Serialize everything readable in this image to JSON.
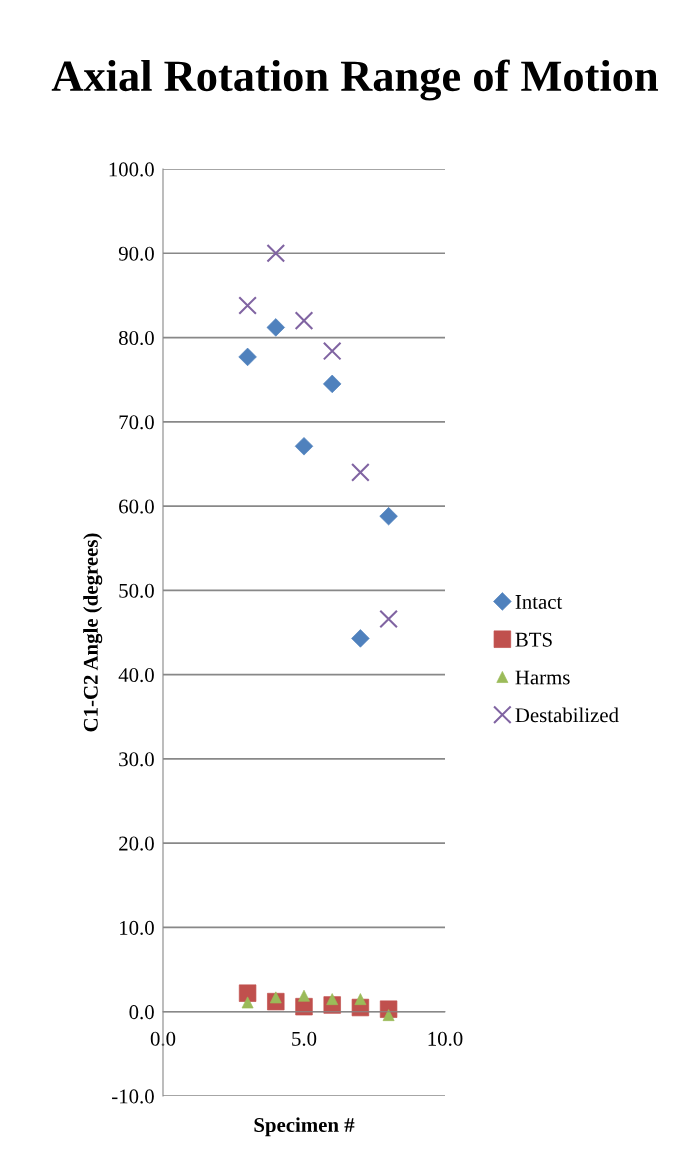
{
  "chart_data": {
    "type": "scatter",
    "title": "Axial Rotation Range of Motion",
    "xlabel": "Specimen #",
    "ylabel": "C1-C2 Angle (degrees)",
    "x": [
      3,
      4,
      5,
      6,
      7,
      8
    ],
    "series": [
      {
        "name": "Intact",
        "color": "#4f81bd",
        "marker": "diamond",
        "values": [
          77.7,
          81.2,
          67.1,
          74.5,
          44.3,
          58.8
        ]
      },
      {
        "name": "BTS",
        "color": "#c0504d",
        "marker": "square",
        "values": [
          2.2,
          1.2,
          0.6,
          0.8,
          0.5,
          0.3
        ]
      },
      {
        "name": "Harms",
        "color": "#9bbb59",
        "marker": "triangle",
        "values": [
          1.1,
          1.7,
          1.9,
          1.5,
          1.5,
          -0.4
        ]
      },
      {
        "name": "Destabilized",
        "color": "#8064a2",
        "marker": "cross",
        "values": [
          83.8,
          90.0,
          82.0,
          78.4,
          64.0,
          46.6
        ]
      }
    ],
    "xlim": [
      0,
      10
    ],
    "xticks": [
      {
        "value": 0,
        "label": "0.0"
      },
      {
        "value": 5,
        "label": "5.0"
      },
      {
        "value": 10,
        "label": "10.0"
      }
    ],
    "ylim": [
      -10,
      100
    ],
    "yticks": [
      {
        "value": -10,
        "label": "-10.0"
      },
      {
        "value": 0,
        "label": "0.0"
      },
      {
        "value": 10,
        "label": "10.0"
      },
      {
        "value": 20,
        "label": "20.0"
      },
      {
        "value": 30,
        "label": "30.0"
      },
      {
        "value": 40,
        "label": "40.0"
      },
      {
        "value": 50,
        "label": "50.0"
      },
      {
        "value": 60,
        "label": "60.0"
      },
      {
        "value": 70,
        "label": "70.0"
      },
      {
        "value": 80,
        "label": "80.0"
      },
      {
        "value": 90,
        "label": "90.0"
      },
      {
        "value": 100,
        "label": "100.0"
      }
    ],
    "grid": "y",
    "legend": "right"
  }
}
